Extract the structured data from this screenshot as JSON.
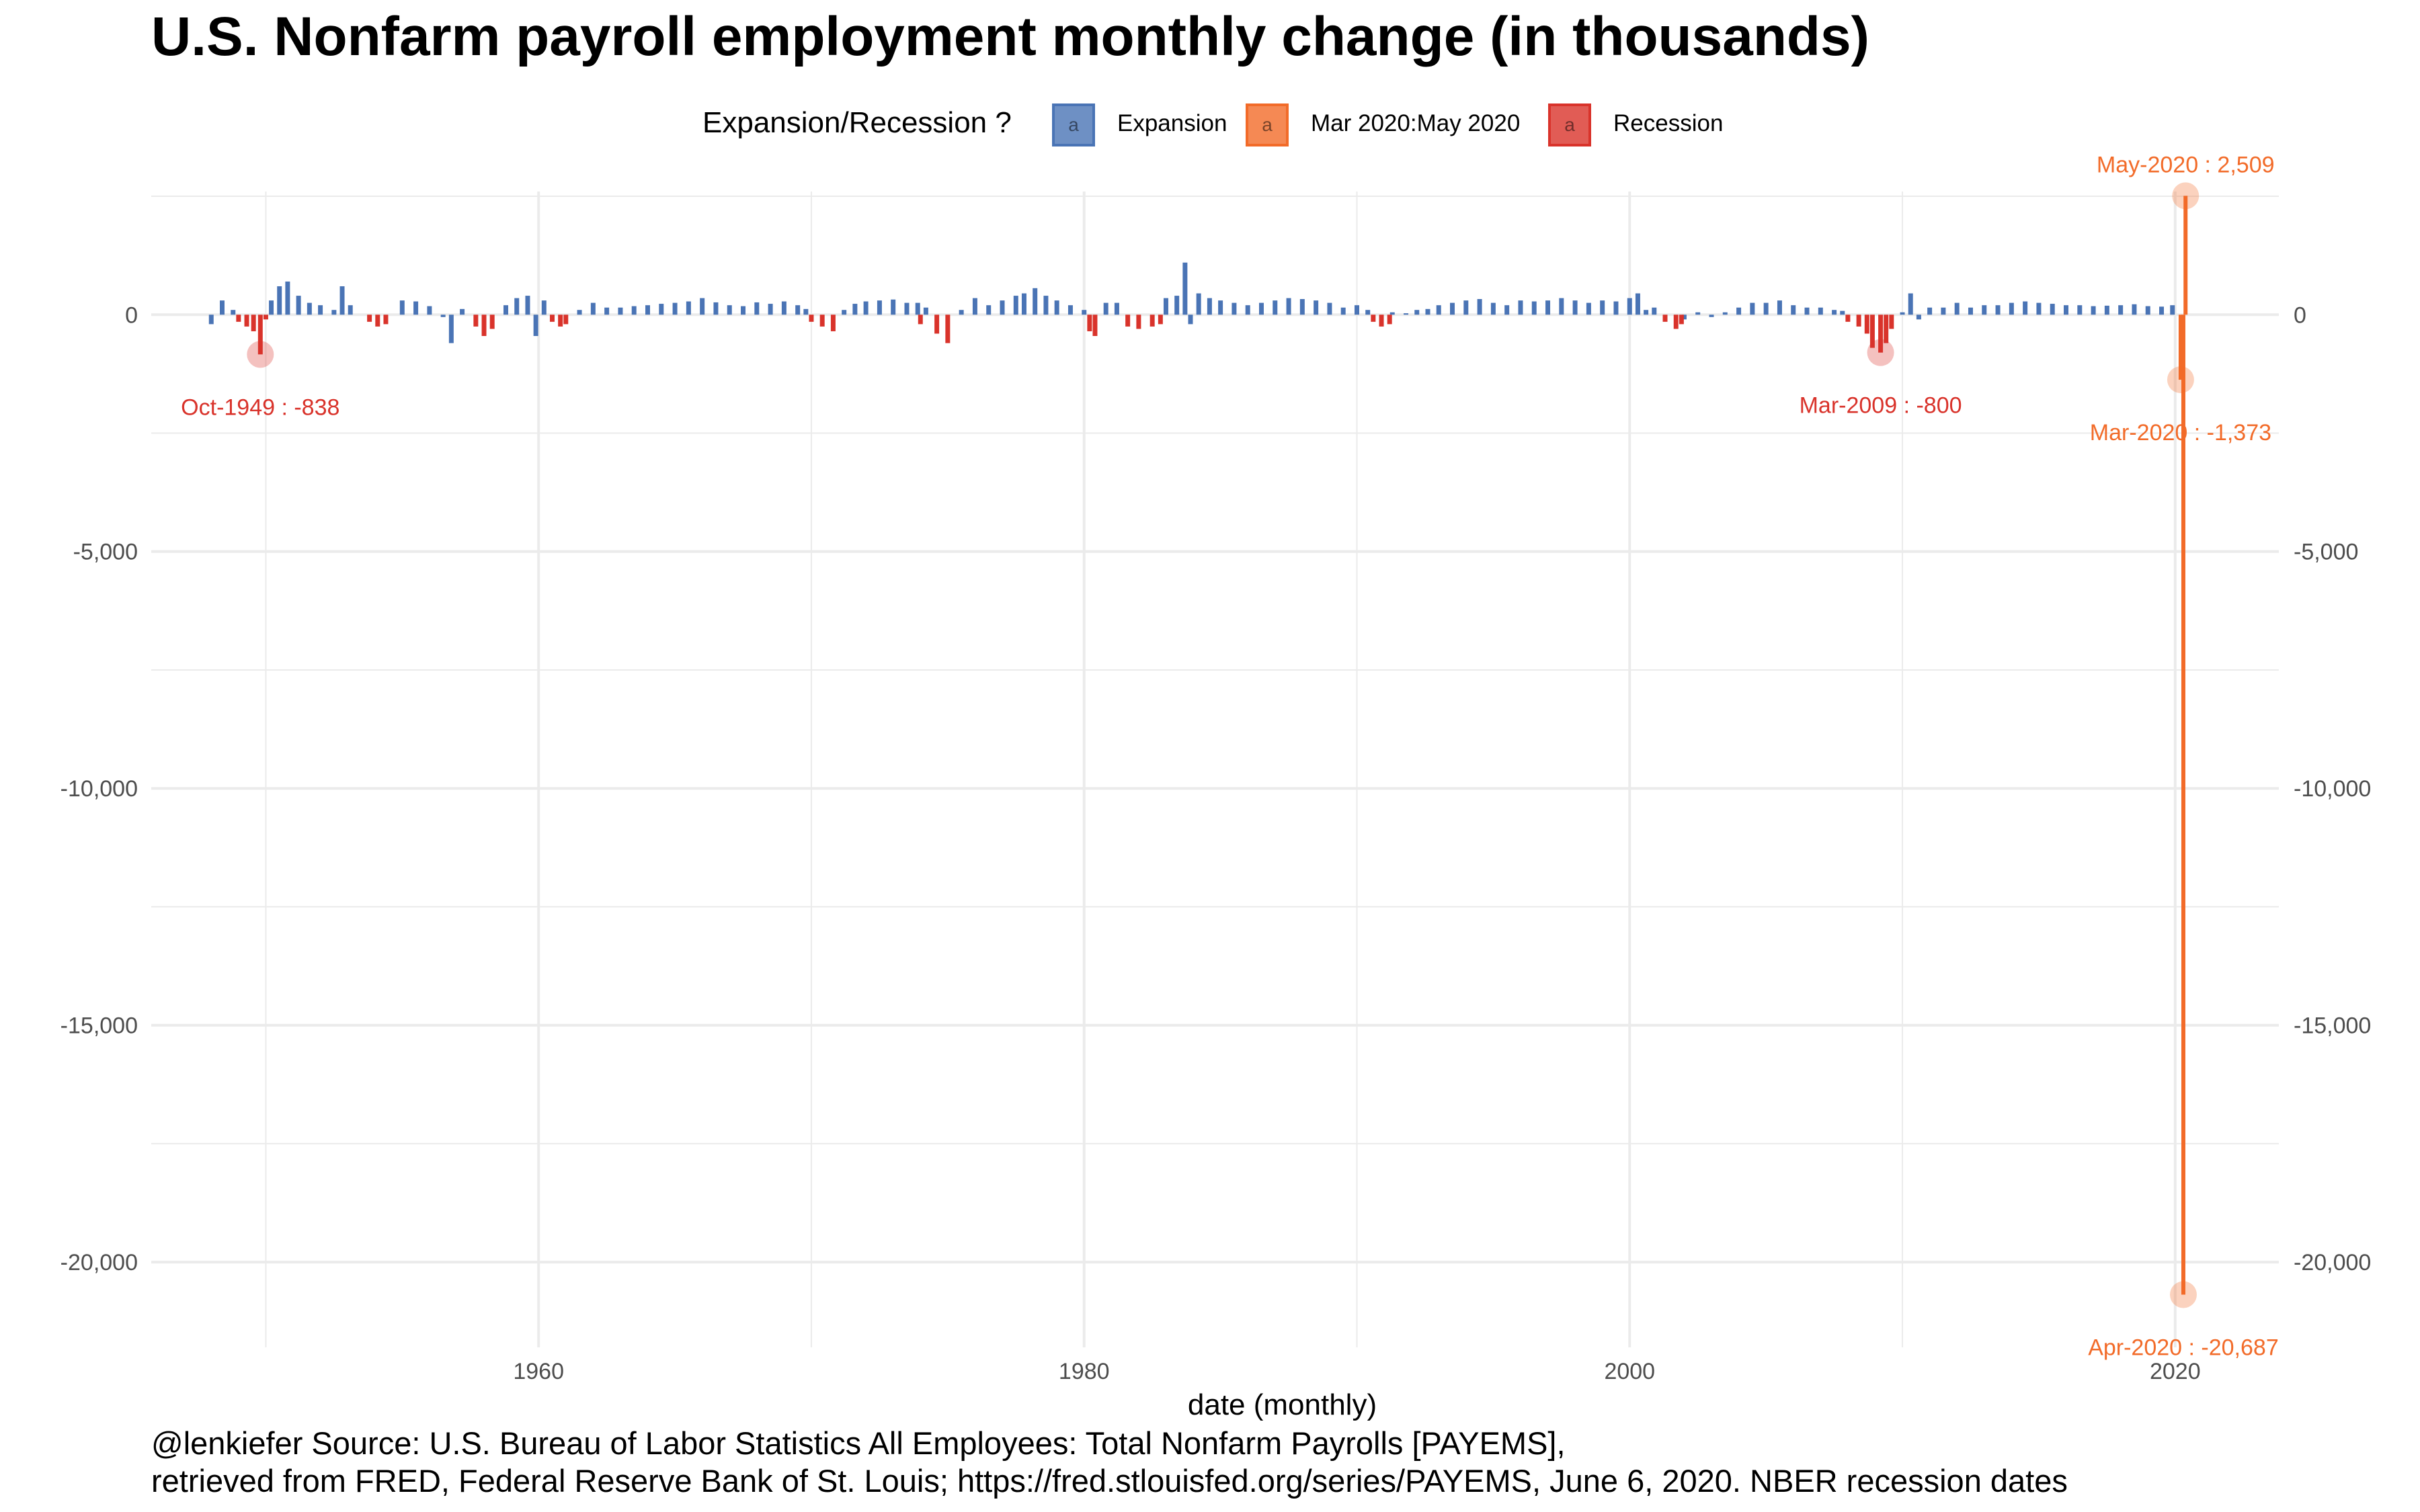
{
  "chart_data": {
    "type": "bar",
    "title": "U.S. Nonfarm payroll employment monthly change (in thousands)",
    "xlabel": "date (monthly)",
    "ylabel": "",
    "xlim": [
      1945.8,
      2023.8
    ],
    "ylim": [
      -21800,
      2600
    ],
    "x_ticks": [
      1960,
      1980,
      2000,
      2020
    ],
    "y_ticks": [
      0,
      -5000,
      -10000,
      -15000,
      -20000
    ],
    "y_tick_labels": [
      "0",
      "-5,000",
      "-10,000",
      "-15,000",
      "-20,000"
    ],
    "x_tick_labels": [
      "1960",
      "1980",
      "2000",
      "2020"
    ],
    "grid": true,
    "legend": {
      "position": "top",
      "title": "Expansion/Recession ?",
      "glyph": "a",
      "entries": [
        {
          "label": "Expansion",
          "color": "#4a74b5"
        },
        {
          "label": "Mar 2020:May 2020",
          "color": "#f26b29"
        },
        {
          "label": "Recession",
          "color": "#d9332b"
        }
      ]
    },
    "series": [
      {
        "name": "Expansion",
        "color": "#4a74b5",
        "points": [
          [
            1948.0,
            -200
          ],
          [
            1948.4,
            300
          ],
          [
            1948.8,
            100
          ],
          [
            1950.2,
            300
          ],
          [
            1950.5,
            600
          ],
          [
            1950.8,
            700
          ],
          [
            1951.2,
            400
          ],
          [
            1951.6,
            250
          ],
          [
            1952.0,
            200
          ],
          [
            1952.5,
            100
          ],
          [
            1952.8,
            600
          ],
          [
            1953.1,
            200
          ],
          [
            1955.0,
            300
          ],
          [
            1955.5,
            280
          ],
          [
            1956.0,
            180
          ],
          [
            1956.5,
            -50
          ],
          [
            1956.8,
            -600
          ],
          [
            1957.2,
            120
          ],
          [
            1958.8,
            200
          ],
          [
            1959.2,
            350
          ],
          [
            1959.6,
            400
          ],
          [
            1959.9,
            -450
          ],
          [
            1960.2,
            300
          ],
          [
            1961.5,
            100
          ],
          [
            1962.0,
            250
          ],
          [
            1962.5,
            150
          ],
          [
            1963.0,
            150
          ],
          [
            1963.5,
            180
          ],
          [
            1964.0,
            200
          ],
          [
            1964.5,
            230
          ],
          [
            1965.0,
            250
          ],
          [
            1965.5,
            280
          ],
          [
            1966.0,
            350
          ],
          [
            1966.5,
            260
          ],
          [
            1967.0,
            200
          ],
          [
            1967.5,
            180
          ],
          [
            1968.0,
            260
          ],
          [
            1968.5,
            230
          ],
          [
            1969.0,
            280
          ],
          [
            1969.5,
            200
          ],
          [
            1969.8,
            120
          ],
          [
            1971.2,
            100
          ],
          [
            1971.6,
            230
          ],
          [
            1972.0,
            280
          ],
          [
            1972.5,
            300
          ],
          [
            1973.0,
            320
          ],
          [
            1973.5,
            250
          ],
          [
            1973.9,
            250
          ],
          [
            1974.2,
            150
          ],
          [
            1975.5,
            100
          ],
          [
            1976.0,
            350
          ],
          [
            1976.5,
            200
          ],
          [
            1977.0,
            300
          ],
          [
            1977.5,
            400
          ],
          [
            1977.8,
            450
          ],
          [
            1978.2,
            560
          ],
          [
            1978.6,
            400
          ],
          [
            1979.0,
            300
          ],
          [
            1979.5,
            200
          ],
          [
            1980.0,
            100
          ],
          [
            1980.8,
            250
          ],
          [
            1981.2,
            250
          ],
          [
            1983.0,
            350
          ],
          [
            1983.4,
            400
          ],
          [
            1983.7,
            1100
          ],
          [
            1983.9,
            -200
          ],
          [
            1984.2,
            450
          ],
          [
            1984.6,
            350
          ],
          [
            1985.0,
            300
          ],
          [
            1985.5,
            250
          ],
          [
            1986.0,
            200
          ],
          [
            1986.5,
            250
          ],
          [
            1987.0,
            300
          ],
          [
            1987.5,
            350
          ],
          [
            1988.0,
            330
          ],
          [
            1988.5,
            300
          ],
          [
            1989.0,
            250
          ],
          [
            1989.5,
            150
          ],
          [
            1990.0,
            200
          ],
          [
            1990.4,
            100
          ],
          [
            1991.3,
            50
          ],
          [
            1991.8,
            30
          ],
          [
            1992.2,
            100
          ],
          [
            1992.6,
            120
          ],
          [
            1993.0,
            200
          ],
          [
            1993.5,
            250
          ],
          [
            1994.0,
            300
          ],
          [
            1994.5,
            330
          ],
          [
            1995.0,
            250
          ],
          [
            1995.5,
            200
          ],
          [
            1996.0,
            300
          ],
          [
            1996.5,
            280
          ],
          [
            1997.0,
            300
          ],
          [
            1997.5,
            350
          ],
          [
            1998.0,
            300
          ],
          [
            1998.5,
            250
          ],
          [
            1999.0,
            300
          ],
          [
            1999.5,
            280
          ],
          [
            2000.0,
            350
          ],
          [
            2000.3,
            450
          ],
          [
            2000.6,
            100
          ],
          [
            2000.9,
            150
          ],
          [
            2002.0,
            -100
          ],
          [
            2002.5,
            50
          ],
          [
            2003.0,
            -50
          ],
          [
            2003.5,
            50
          ],
          [
            2004.0,
            150
          ],
          [
            2004.5,
            250
          ],
          [
            2005.0,
            250
          ],
          [
            2005.5,
            300
          ],
          [
            2006.0,
            200
          ],
          [
            2006.5,
            150
          ],
          [
            2007.0,
            150
          ],
          [
            2007.5,
            100
          ],
          [
            2007.8,
            80
          ],
          [
            2010.0,
            50
          ],
          [
            2010.3,
            450
          ],
          [
            2010.6,
            -100
          ],
          [
            2011.0,
            150
          ],
          [
            2011.5,
            150
          ],
          [
            2012.0,
            250
          ],
          [
            2012.5,
            150
          ],
          [
            2013.0,
            200
          ],
          [
            2013.5,
            200
          ],
          [
            2014.0,
            250
          ],
          [
            2014.5,
            280
          ],
          [
            2015.0,
            250
          ],
          [
            2015.5,
            230
          ],
          [
            2016.0,
            200
          ],
          [
            2016.5,
            200
          ],
          [
            2017.0,
            180
          ],
          [
            2017.5,
            190
          ],
          [
            2018.0,
            200
          ],
          [
            2018.5,
            220
          ],
          [
            2019.0,
            180
          ],
          [
            2019.5,
            170
          ],
          [
            2019.9,
            200
          ]
        ]
      },
      {
        "name": "Recession",
        "color": "#d9332b",
        "points": [
          [
            1949.0,
            -150
          ],
          [
            1949.3,
            -250
          ],
          [
            1949.55,
            -350
          ],
          [
            1949.8,
            -838
          ],
          [
            1950.0,
            -100
          ],
          [
            1953.8,
            -150
          ],
          [
            1954.1,
            -250
          ],
          [
            1954.4,
            -200
          ],
          [
            1957.7,
            -250
          ],
          [
            1958.0,
            -450
          ],
          [
            1958.3,
            -300
          ],
          [
            1960.5,
            -150
          ],
          [
            1960.8,
            -250
          ],
          [
            1961.0,
            -200
          ],
          [
            1970.0,
            -150
          ],
          [
            1970.4,
            -250
          ],
          [
            1970.8,
            -350
          ],
          [
            1974.0,
            -200
          ],
          [
            1974.6,
            -400
          ],
          [
            1975.0,
            -600
          ],
          [
            1980.2,
            -350
          ],
          [
            1980.4,
            -450
          ],
          [
            1981.6,
            -250
          ],
          [
            1982.0,
            -300
          ],
          [
            1982.5,
            -250
          ],
          [
            1982.8,
            -200
          ],
          [
            1990.6,
            -150
          ],
          [
            1990.9,
            -250
          ],
          [
            1991.2,
            -200
          ],
          [
            2001.3,
            -150
          ],
          [
            2001.7,
            -300
          ],
          [
            2001.9,
            -200
          ],
          [
            2008.0,
            -150
          ],
          [
            2008.4,
            -250
          ],
          [
            2008.7,
            -400
          ],
          [
            2008.9,
            -700
          ],
          [
            2009.2,
            -800
          ],
          [
            2009.4,
            -600
          ],
          [
            2009.6,
            -300
          ]
        ]
      },
      {
        "name": "Mar 2020:May 2020",
        "color": "#f26b29",
        "points": [
          [
            2020.2,
            -1373
          ],
          [
            2020.3,
            -20687
          ],
          [
            2020.38,
            2509
          ]
        ]
      }
    ],
    "annotations": [
      {
        "label": "Oct-1949 : -838",
        "x": 1949.8,
        "y": -838,
        "color": "#d9332b"
      },
      {
        "label": "Mar-2009 : -800",
        "x": 2009.2,
        "y": -800,
        "color": "#d9332b"
      },
      {
        "label": "Mar-2020 : -1,373",
        "x": 2020.2,
        "y": -1373,
        "color": "#f26b29"
      },
      {
        "label": "Apr-2020 : -20,687",
        "x": 2020.3,
        "y": -20687,
        "color": "#f26b29"
      },
      {
        "label": "May-2020 : 2,509",
        "x": 2020.38,
        "y": 2509,
        "color": "#f26b29"
      }
    ],
    "colors": {
      "expansion": "#4a74b5",
      "covid": "#f26b29",
      "recession": "#d9332b",
      "grid": "#ebebeb",
      "axis_text": "#4d4d4d"
    }
  },
  "caption": {
    "line1": "@lenkiefer Source: U.S. Bureau of Labor Statistics All Employees: Total Nonfarm Payrolls [PAYEMS],",
    "line2": "retrieved from FRED, Federal Reserve Bank of St. Louis; https://fred.stlouisfed.org/series/PAYEMS, June 6, 2020. NBER recession dates"
  }
}
